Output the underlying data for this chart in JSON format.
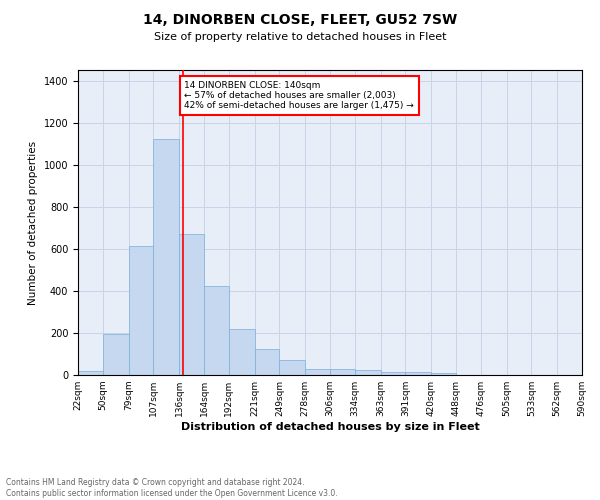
{
  "title": "14, DINORBEN CLOSE, FLEET, GU52 7SW",
  "subtitle": "Size of property relative to detached houses in Fleet",
  "xlabel": "Distribution of detached houses by size in Fleet",
  "ylabel": "Number of detached properties",
  "bins": [
    22,
    50,
    79,
    107,
    136,
    164,
    192,
    221,
    249,
    278,
    306,
    334,
    363,
    391,
    420,
    448,
    476,
    505,
    533,
    562,
    590
  ],
  "counts": [
    18,
    193,
    612,
    1120,
    670,
    423,
    220,
    125,
    72,
    28,
    28,
    22,
    15,
    12,
    10,
    0,
    0,
    0,
    0,
    0
  ],
  "bar_color": "#c5d8f0",
  "bar_edge_color": "#7aaedc",
  "red_line_x": 140,
  "annotation_text": "14 DINORBEN CLOSE: 140sqm\n← 57% of detached houses are smaller (2,003)\n42% of semi-detached houses are larger (1,475) →",
  "annotation_box_color": "white",
  "annotation_box_edge_color": "red",
  "red_line_color": "red",
  "ylim": [
    0,
    1450
  ],
  "yticks": [
    0,
    200,
    400,
    600,
    800,
    1000,
    1200,
    1400
  ],
  "grid_color": "#c8d4e8",
  "background_color": "#e8eef8",
  "footer_text": "Contains HM Land Registry data © Crown copyright and database right 2024.\nContains public sector information licensed under the Open Government Licence v3.0.",
  "tick_labels": [
    "22sqm",
    "50sqm",
    "79sqm",
    "107sqm",
    "136sqm",
    "164sqm",
    "192sqm",
    "221sqm",
    "249sqm",
    "278sqm",
    "306sqm",
    "334sqm",
    "363sqm",
    "391sqm",
    "420sqm",
    "448sqm",
    "476sqm",
    "505sqm",
    "533sqm",
    "562sqm",
    "590sqm"
  ]
}
